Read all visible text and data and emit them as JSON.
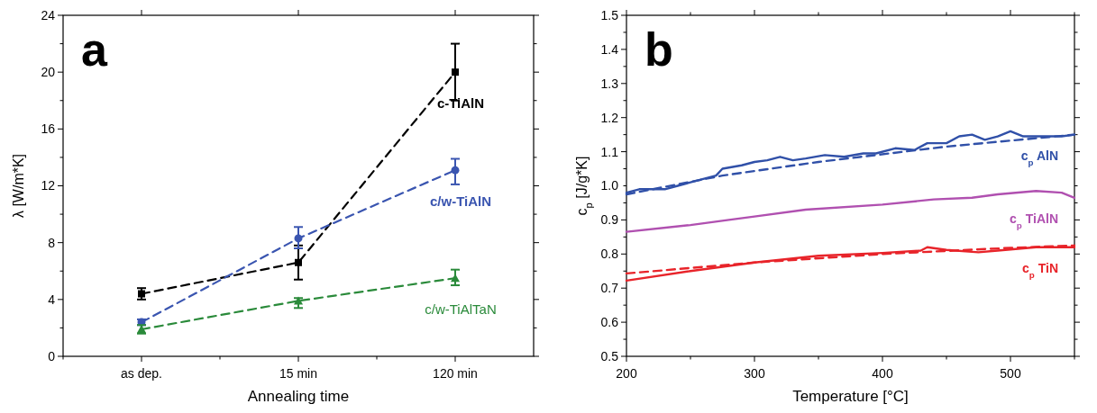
{
  "chart_data": [
    {
      "type": "line",
      "annotations": [
        "a"
      ],
      "xlabel": "Annealing time",
      "ylabel": "λ [W/m*K]",
      "categories": [
        "as dep.",
        "15 min",
        "120 min"
      ],
      "ylim": [
        0,
        24
      ],
      "yticks": [
        0,
        {
          "value": 2,
          "label": null
        },
        4,
        {
          "value": 6,
          "label": null
        },
        8,
        {
          "value": 10,
          "label": null
        },
        12,
        {
          "value": 14,
          "label": null
        },
        16,
        {
          "value": 18,
          "label": null
        },
        20,
        {
          "value": 22,
          "label": null
        },
        24
      ],
      "line_style": "dashed",
      "grid": false,
      "series": [
        {
          "name": "c-TiAlN",
          "color": "#000000",
          "marker": "square",
          "values": [
            4.4,
            6.6,
            20
          ],
          "errors": [
            0.4,
            [
              5.4,
              7.8
            ],
            2
          ]
        },
        {
          "name": "c/w-TiAlN",
          "color": "#3a55b0",
          "marker": "circle",
          "values": [
            2.4,
            8.3,
            13.1
          ],
          "errors": [
            0.2,
            [
              7.6,
              9.1
            ],
            [
              12.1,
              13.9
            ]
          ]
        },
        {
          "name": "c/w-TiAlTaN",
          "color": "#2a8a3a",
          "marker": "triangle",
          "values": [
            1.9,
            3.9,
            5.5
          ],
          "errors": [
            0.3,
            [
              3.4,
              4.1
            ],
            [
              5.0,
              6.1
            ]
          ]
        }
      ]
    },
    {
      "type": "line",
      "annotations": [
        "b"
      ],
      "xlabel": "Temperature [°C]",
      "ylabel": "c$_{p}$ [J/g*K]",
      "xlim": [
        200,
        550
      ],
      "xticks": [
        200,
        {
          "value": 250,
          "label": null
        },
        300,
        {
          "value": 350,
          "label": null
        },
        400,
        {
          "value": 450,
          "label": null
        },
        500,
        {
          "value": 550,
          "label": null
        }
      ],
      "ylim": [
        0.5,
        1.5
      ],
      "yticks": [
        0.5,
        {
          "value": 0.55,
          "label": null
        },
        0.6,
        {
          "value": 0.65,
          "label": null
        },
        0.7,
        {
          "value": 0.75,
          "label": null
        },
        0.8,
        {
          "value": 0.85,
          "label": null
        },
        0.9,
        {
          "value": 0.95,
          "label": null
        },
        {
          "value": 1.0,
          "label": "1.0"
        },
        {
          "value": 1.05,
          "label": null
        },
        1.1,
        {
          "value": 1.15,
          "label": null
        },
        1.2,
        {
          "value": 1.25,
          "label": null
        },
        1.3,
        {
          "value": 1.35,
          "label": null
        },
        1.4,
        {
          "value": 1.45,
          "label": null
        },
        1.5
      ],
      "marker": "none",
      "grid": false,
      "series": [
        {
          "name": "c$_{p}$ AlN",
          "color": "#3050a8",
          "line_style": "solid",
          "x": [
            200,
            210,
            230,
            240,
            250,
            260,
            270,
            275,
            290,
            300,
            310,
            320,
            330,
            340,
            355,
            370,
            385,
            395,
            410,
            425,
            435,
            450,
            460,
            470,
            480,
            490,
            500,
            510,
            525,
            540,
            550
          ],
          "values": [
            0.98,
            0.99,
            0.99,
            1.0,
            1.01,
            1.02,
            1.03,
            1.05,
            1.06,
            1.07,
            1.075,
            1.085,
            1.075,
            1.08,
            1.09,
            1.085,
            1.095,
            1.095,
            1.11,
            1.105,
            1.125,
            1.125,
            1.145,
            1.15,
            1.135,
            1.145,
            1.16,
            1.145,
            1.145,
            1.145,
            1.15
          ]
        },
        {
          "color": "#3050a8",
          "line_style": "dashed",
          "x": [
            200,
            275,
            350,
            450,
            550
          ],
          "values": [
            0.975,
            1.03,
            1.07,
            1.115,
            1.15
          ]
        },
        {
          "name": "c$_{p}$ TiAlN",
          "color": "#b050b0",
          "line_style": "solid",
          "x": [
            200,
            250,
            280,
            300,
            340,
            400,
            440,
            470,
            490,
            520,
            540,
            550
          ],
          "values": [
            0.865,
            0.885,
            0.9,
            0.91,
            0.93,
            0.945,
            0.96,
            0.965,
            0.975,
            0.985,
            0.98,
            0.965
          ]
        },
        {
          "name": "c$_{p}$ TiN",
          "color": "#e8242a",
          "line_style": "solid",
          "x": [
            200,
            250,
            300,
            350,
            400,
            430,
            435,
            450,
            475,
            490,
            520,
            550
          ],
          "values": [
            0.722,
            0.75,
            0.775,
            0.795,
            0.803,
            0.81,
            0.82,
            0.812,
            0.805,
            0.81,
            0.82,
            0.82
          ]
        },
        {
          "color": "#e8242a",
          "line_style": "dashed",
          "x": [
            200,
            300,
            400,
            500,
            550
          ],
          "values": [
            0.743,
            0.775,
            0.8,
            0.818,
            0.825
          ]
        }
      ]
    }
  ]
}
